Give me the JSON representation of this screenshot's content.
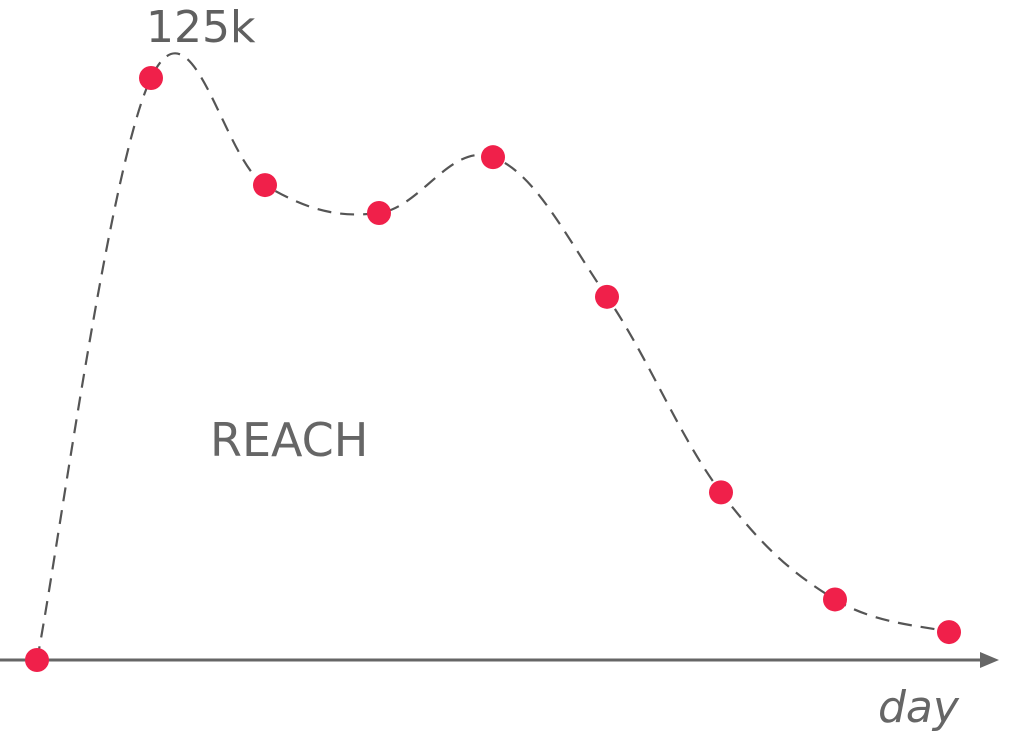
{
  "chart_data": {
    "type": "line",
    "title": "",
    "xlabel": "day",
    "ylabel": "",
    "series_label": "REACH",
    "peak_label": "125k",
    "x": [
      0,
      1,
      2,
      3,
      4,
      5,
      6,
      7,
      8
    ],
    "series": [
      {
        "values": [
          0,
          125,
          102,
          96,
          108,
          78,
          36,
          13,
          6
        ]
      }
    ],
    "ylim": [
      0,
      125
    ],
    "grid": false,
    "line_style": "dashed smooth",
    "line_color": "#555555",
    "marker_color": "#F0204A",
    "axis_color": "#666666"
  }
}
